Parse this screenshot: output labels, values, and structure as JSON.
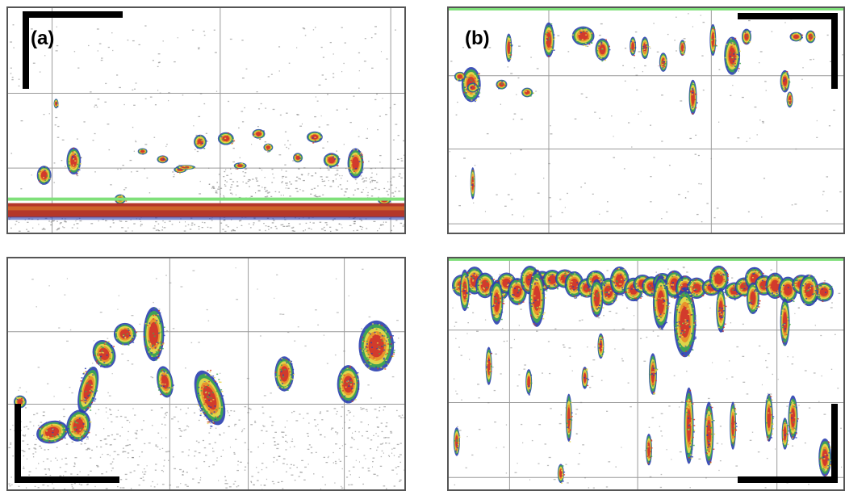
{
  "figure": {
    "panels": [
      {
        "label": "(a)",
        "id": "a"
      },
      {
        "label": "(b)",
        "id": "b"
      },
      {
        "label": "",
        "id": "c"
      },
      {
        "label": "",
        "id": "d"
      }
    ]
  },
  "colors": {
    "background": "#ffffff",
    "grid": "#9a9a9a",
    "seabed_red": "#b4372a",
    "seabed_green": "#7fe07a",
    "echo_red": "#d23b2c",
    "echo_orange": "#e8902a",
    "echo_yellow": "#e8d84a",
    "echo_green": "#3fa650",
    "echo_blue": "#2a3fb0",
    "noise_gray": "#777777",
    "scale_bar": "#000000"
  }
}
